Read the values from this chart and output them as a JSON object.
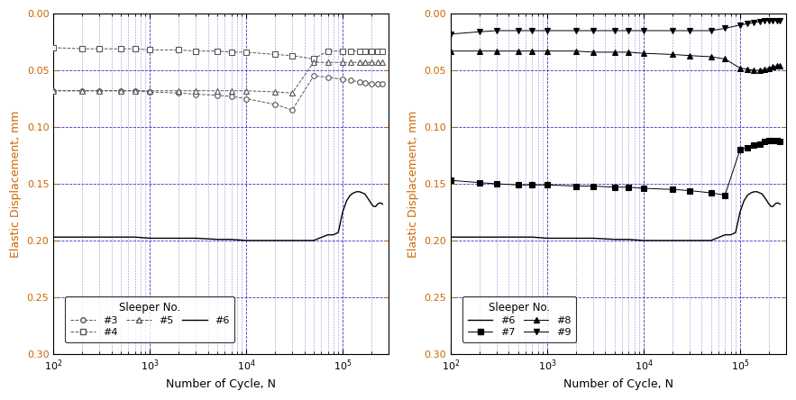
{
  "xlim": [
    100,
    300000
  ],
  "ylim": [
    0.3,
    0.0
  ],
  "yticks": [
    0.0,
    0.05,
    0.1,
    0.15,
    0.2,
    0.25,
    0.3
  ],
  "xlabel": "Number of Cycle, N",
  "ylabel": "Elastic Displacement, mm",
  "grid_color_major": "#3333cc",
  "grid_color_minor": "#6666cc",
  "bg_color": "#ffffff",
  "ytick_color": "#cc6600",
  "legend1_title": "Sleeper No.",
  "legend2_title": "Sleeper No.",
  "series_left": {
    "#3": {
      "x": [
        100,
        200,
        300,
        500,
        700,
        1000,
        2000,
        3000,
        5000,
        7000,
        10000,
        20000,
        30000,
        50000,
        70000,
        100000,
        120000,
        150000,
        170000,
        200000,
        230000,
        260000
      ],
      "y": [
        0.068,
        0.068,
        0.068,
        0.068,
        0.068,
        0.069,
        0.07,
        0.071,
        0.072,
        0.073,
        0.075,
        0.08,
        0.085,
        0.055,
        0.056,
        0.058,
        0.059,
        0.06,
        0.061,
        0.062,
        0.062,
        0.062
      ],
      "color": "#555555",
      "marker": "o",
      "markerface": "white",
      "linestyle": "--",
      "filled": false
    },
    "#4": {
      "x": [
        100,
        200,
        300,
        500,
        700,
        1000,
        2000,
        3000,
        5000,
        7000,
        10000,
        20000,
        30000,
        50000,
        70000,
        100000,
        120000,
        150000,
        170000,
        200000,
        230000,
        260000
      ],
      "y": [
        0.03,
        0.031,
        0.031,
        0.031,
        0.031,
        0.032,
        0.032,
        0.033,
        0.033,
        0.034,
        0.034,
        0.036,
        0.037,
        0.04,
        0.033,
        0.033,
        0.033,
        0.033,
        0.033,
        0.033,
        0.033,
        0.033
      ],
      "color": "#555555",
      "marker": "s",
      "markerface": "white",
      "linestyle": "--",
      "filled": false
    },
    "#5": {
      "x": [
        100,
        200,
        300,
        500,
        700,
        1000,
        2000,
        3000,
        5000,
        7000,
        10000,
        20000,
        30000,
        50000,
        70000,
        100000,
        120000,
        150000,
        170000,
        200000,
        230000,
        260000
      ],
      "y": [
        0.068,
        0.068,
        0.068,
        0.068,
        0.068,
        0.068,
        0.068,
        0.068,
        0.068,
        0.068,
        0.068,
        0.069,
        0.07,
        0.043,
        0.043,
        0.043,
        0.043,
        0.043,
        0.043,
        0.043,
        0.043,
        0.043
      ],
      "color": "#555555",
      "marker": "^",
      "markerface": "white",
      "linestyle": "--",
      "filled": false
    },
    "#6_left": {
      "x": [
        100,
        200,
        300,
        500,
        700,
        1000,
        2000,
        3000,
        5000,
        7000,
        10000,
        20000,
        30000,
        50000,
        70000,
        80000,
        90000,
        100000,
        110000,
        120000,
        130000,
        140000,
        150000,
        160000,
        170000,
        180000,
        190000,
        200000,
        210000,
        220000,
        230000,
        240000,
        250000,
        260000
      ],
      "y": [
        0.197,
        0.197,
        0.197,
        0.197,
        0.197,
        0.198,
        0.198,
        0.198,
        0.199,
        0.199,
        0.2,
        0.2,
        0.2,
        0.2,
        0.195,
        0.195,
        0.193,
        0.175,
        0.165,
        0.16,
        0.158,
        0.157,
        0.157,
        0.158,
        0.159,
        0.162,
        0.165,
        0.168,
        0.17,
        0.17,
        0.168,
        0.167,
        0.167,
        0.168
      ],
      "color": "#000000",
      "marker": "None",
      "markerface": "black",
      "linestyle": "-",
      "filled": true
    }
  },
  "series_right": {
    "#6": {
      "x": [
        100,
        200,
        300,
        500,
        700,
        1000,
        2000,
        3000,
        5000,
        7000,
        10000,
        20000,
        30000,
        50000,
        70000,
        80000,
        90000,
        100000,
        110000,
        120000,
        130000,
        140000,
        150000,
        160000,
        170000,
        180000,
        190000,
        200000,
        210000,
        220000,
        230000,
        240000,
        250000,
        260000
      ],
      "y": [
        0.197,
        0.197,
        0.197,
        0.197,
        0.197,
        0.198,
        0.198,
        0.198,
        0.199,
        0.199,
        0.2,
        0.2,
        0.2,
        0.2,
        0.195,
        0.195,
        0.193,
        0.175,
        0.165,
        0.16,
        0.158,
        0.157,
        0.157,
        0.158,
        0.159,
        0.162,
        0.165,
        0.168,
        0.17,
        0.17,
        0.168,
        0.167,
        0.167,
        0.168
      ],
      "color": "#000000",
      "marker": "None",
      "markerface": "black",
      "linestyle": "-",
      "filled": true
    },
    "#7": {
      "x": [
        100,
        200,
        300,
        500,
        700,
        1000,
        2000,
        3000,
        5000,
        7000,
        10000,
        20000,
        30000,
        50000,
        70000,
        100000,
        120000,
        140000,
        160000,
        180000,
        200000,
        220000,
        240000,
        260000
      ],
      "y": [
        0.147,
        0.149,
        0.15,
        0.151,
        0.151,
        0.151,
        0.152,
        0.152,
        0.153,
        0.153,
        0.154,
        0.155,
        0.156,
        0.158,
        0.16,
        0.12,
        0.118,
        0.116,
        0.115,
        0.113,
        0.112,
        0.112,
        0.112,
        0.113
      ],
      "color": "#000000",
      "marker": "s",
      "markerface": "black",
      "linestyle": "-",
      "filled": true
    },
    "#8": {
      "x": [
        100,
        200,
        300,
        500,
        700,
        1000,
        2000,
        3000,
        5000,
        7000,
        10000,
        20000,
        30000,
        50000,
        70000,
        100000,
        120000,
        140000,
        160000,
        180000,
        200000,
        220000,
        240000,
        260000
      ],
      "y": [
        0.033,
        0.033,
        0.033,
        0.033,
        0.033,
        0.033,
        0.033,
        0.034,
        0.034,
        0.034,
        0.035,
        0.036,
        0.037,
        0.038,
        0.04,
        0.048,
        0.049,
        0.05,
        0.05,
        0.049,
        0.048,
        0.047,
        0.046,
        0.046
      ],
      "color": "#000000",
      "marker": "^",
      "markerface": "black",
      "linestyle": "-",
      "filled": true
    },
    "#9": {
      "x": [
        100,
        200,
        300,
        500,
        700,
        1000,
        2000,
        3000,
        5000,
        7000,
        10000,
        20000,
        30000,
        50000,
        70000,
        100000,
        120000,
        140000,
        160000,
        180000,
        200000,
        220000,
        240000,
        260000
      ],
      "y": [
        0.018,
        0.016,
        0.015,
        0.015,
        0.015,
        0.015,
        0.015,
        0.015,
        0.015,
        0.015,
        0.015,
        0.015,
        0.015,
        0.015,
        0.013,
        0.01,
        0.009,
        0.008,
        0.007,
        0.006,
        0.006,
        0.006,
        0.006,
        0.006
      ],
      "color": "#000000",
      "marker": "v",
      "markerface": "black",
      "linestyle": "-",
      "filled": true
    }
  }
}
